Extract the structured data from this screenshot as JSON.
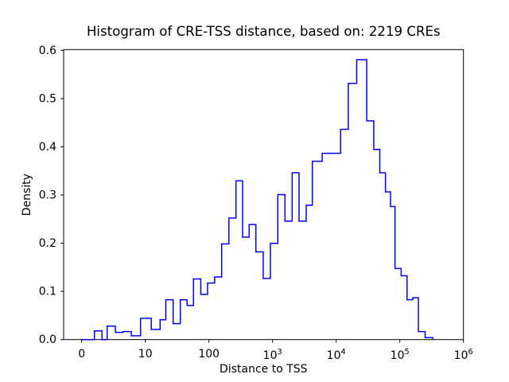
{
  "title": "Histogram of CRE-TSS distance, based on: 2219 CREs",
  "axes": {
    "x": {
      "label": "Distance to TSS",
      "scale": "symlog",
      "ticks": [
        {
          "label": "0",
          "value": 0
        },
        {
          "label": "10",
          "value": 10
        },
        {
          "label": "100",
          "value": 100
        },
        {
          "base": "10",
          "exp": "3",
          "value": 1000
        },
        {
          "base": "10",
          "exp": "4",
          "value": 10000
        },
        {
          "base": "10",
          "exp": "5",
          "value": 100000
        },
        {
          "base": "10",
          "exp": "6",
          "value": 1000000
        }
      ]
    },
    "y": {
      "label": "Density",
      "range": [
        0,
        0.6
      ],
      "ticks": [
        {
          "label": "0.0",
          "value": 0.0
        },
        {
          "label": "0.1",
          "value": 0.1
        },
        {
          "label": "0.2",
          "value": 0.2
        },
        {
          "label": "0.3",
          "value": 0.3
        },
        {
          "label": "0.4",
          "value": 0.4
        },
        {
          "label": "0.5",
          "value": 0.5
        },
        {
          "label": "0.6",
          "value": 0.6
        }
      ]
    }
  },
  "chart_data": {
    "type": "histogram-step",
    "title": "Histogram of CRE-TSS distance, based on: 2219 CREs",
    "xlabel": "Distance to TSS",
    "ylabel": "Density",
    "n_samples": 2219,
    "line_color": "#0000ff",
    "x_scale": "symlog: linear from 0 to 10, logarithmic above 10",
    "ylim": [
      0,
      0.6
    ],
    "xlim": [
      -2.8,
      1000000
    ],
    "grid": false,
    "legend": "none",
    "bins_format": [
      "bin_start_distance",
      "bin_end_distance",
      "density"
    ],
    "bins": [
      [
        0,
        2,
        0.0
      ],
      [
        2,
        3.2,
        0.018
      ],
      [
        3.2,
        4,
        0.0
      ],
      [
        4,
        5.3,
        0.028
      ],
      [
        5.3,
        6.5,
        0.015
      ],
      [
        6.5,
        7.8,
        0.0165
      ],
      [
        7.8,
        9.25,
        0.008
      ],
      [
        9.25,
        12.4,
        0.044
      ],
      [
        12.4,
        17.1,
        0.021
      ],
      [
        17.1,
        21,
        0.041
      ],
      [
        21,
        27.4,
        0.0825
      ],
      [
        27.4,
        35.5,
        0.033
      ],
      [
        35.5,
        45.3,
        0.0825
      ],
      [
        45.3,
        57.2,
        0.0705
      ],
      [
        57.2,
        74.3,
        0.1255
      ],
      [
        74.3,
        95.3,
        0.0935
      ],
      [
        95.3,
        123,
        0.117
      ],
      [
        123,
        158.5,
        0.1295
      ],
      [
        158.5,
        206,
        0.198
      ],
      [
        206,
        266,
        0.2515
      ],
      [
        266,
        338,
        0.3285
      ],
      [
        338,
        429,
        0.212
      ],
      [
        429,
        547,
        0.238
      ],
      [
        547,
        714,
        0.1815
      ],
      [
        714,
        925,
        0.1265
      ],
      [
        925,
        1211,
        0.199
      ],
      [
        1211,
        1567,
        0.3
      ],
      [
        1567,
        2032,
        0.245
      ],
      [
        2032,
        2607,
        0.345
      ],
      [
        2607,
        3380,
        0.245
      ],
      [
        3380,
        4217,
        0.278
      ],
      [
        4217,
        6030,
        0.369
      ],
      [
        6030,
        11750,
        0.3855
      ],
      [
        11750,
        15500,
        0.435
      ],
      [
        15500,
        21000,
        0.53
      ],
      [
        21000,
        30200,
        0.579
      ],
      [
        30200,
        39000,
        0.4525
      ],
      [
        39000,
        48500,
        0.3935
      ],
      [
        48500,
        59500,
        0.345
      ],
      [
        59500,
        71500,
        0.3055
      ],
      [
        71500,
        84000,
        0.2752
      ],
      [
        84000,
        105000,
        0.147
      ],
      [
        105000,
        130000,
        0.132
      ],
      [
        130000,
        160000,
        0.0825
      ],
      [
        160000,
        196000,
        0.0865
      ],
      [
        196000,
        250000,
        0.0165
      ],
      [
        250000,
        330000,
        0.004
      ]
    ]
  }
}
